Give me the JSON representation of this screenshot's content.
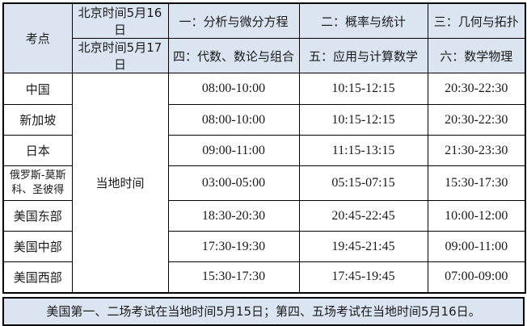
{
  "colors": {
    "header_bg": "#dbe5f1",
    "footer_bg": "#dbe5f1",
    "body_bg": "#ffffff",
    "border": "#000000",
    "text": "#1a1a1a"
  },
  "table": {
    "corner_label": "考点",
    "beijing_time_labels": [
      "北京时间5月16日",
      "北京时间5月17日"
    ],
    "subjects_day1": [
      "一：分析与微分方程",
      "二：概率与统计",
      "三：几何与拓扑"
    ],
    "subjects_day2": [
      "四：代数、数论与组合",
      "五：应用与计算数学",
      "六：数学物理"
    ],
    "local_time_label": "当地时间",
    "rows": [
      {
        "location": "中国",
        "times": [
          "08:00-10:00",
          "10:15-12:15",
          "20:30-22:30"
        ]
      },
      {
        "location": "新加坡",
        "times": [
          "08:00-10:00",
          "10:15-12:15",
          "20:30-22:30"
        ]
      },
      {
        "location": "日本",
        "times": [
          "09:00-11:00",
          "11:15-13:15",
          "21:30-23:30"
        ]
      },
      {
        "location": "俄罗斯-莫斯科、圣彼得",
        "times": [
          "03:00-05:00",
          "05:15-07:15",
          "15:30-17:30"
        ]
      },
      {
        "location": "美国东部",
        "times": [
          "18:30-20:30",
          "20:45-22:45",
          "10:00-12:00"
        ]
      },
      {
        "location": "美国中部",
        "times": [
          "17:30-19:30",
          "19:45-21:45",
          "09:00-11:00"
        ]
      },
      {
        "location": "美国西部",
        "times": [
          "15:30-17:30",
          "17:45-19:45",
          "07:00-09:00"
        ]
      }
    ]
  },
  "footer": {
    "note": "美国第一、二场考试在当地时间5月15日；第四、五场考试在当地时间5月16日。"
  }
}
